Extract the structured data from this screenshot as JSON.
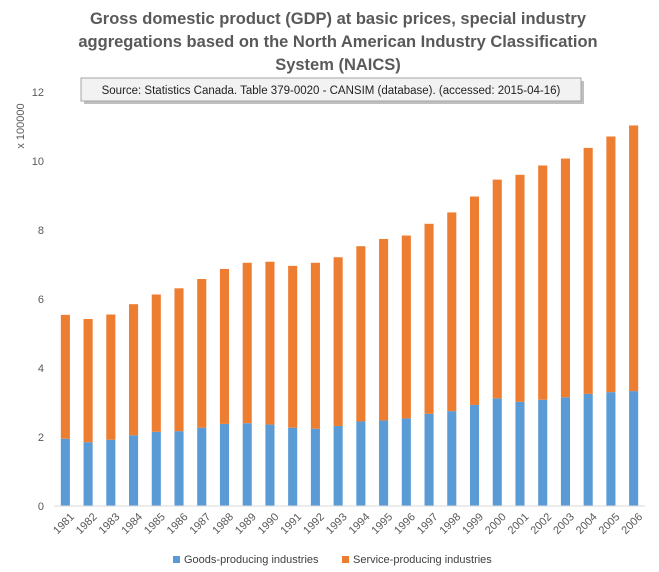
{
  "chart_data": {
    "type": "bar",
    "stacked": true,
    "title_lines": [
      "Gross domestic product (GDP) at basic prices, special industry",
      "aggregations based on the North American Industry Classification",
      "System (NAICS)"
    ],
    "source_note": "Source:  Statistics Canada. Table  379-0020 - CANSIM (database). (accessed: 2015-04-16)",
    "ylabel": "x 100000",
    "xlabel": "",
    "ylim": [
      0,
      12
    ],
    "yticks": [
      0,
      2,
      4,
      6,
      8,
      10,
      12
    ],
    "grid": false,
    "legend_position": "bottom",
    "categories": [
      "1981",
      "1982",
      "1983",
      "1984",
      "1985",
      "1986",
      "1987",
      "1988",
      "1989",
      "1990",
      "1991",
      "1992",
      "1993",
      "1994",
      "1995",
      "1996",
      "1997",
      "1998",
      "1999",
      "2000",
      "2001",
      "2002",
      "2003",
      "2004",
      "2005",
      "2006"
    ],
    "series": [
      {
        "name": "Goods-producing industries",
        "color": "#5b9bd5",
        "values": [
          1.95,
          1.85,
          1.92,
          2.05,
          2.15,
          2.17,
          2.27,
          2.38,
          2.4,
          2.36,
          2.27,
          2.24,
          2.32,
          2.45,
          2.48,
          2.54,
          2.67,
          2.75,
          2.93,
          3.12,
          3.02,
          3.08,
          3.15,
          3.25,
          3.3,
          3.33
        ]
      },
      {
        "name": "Service-producing industries",
        "color": "#ed7d31",
        "values": [
          3.59,
          3.57,
          3.63,
          3.8,
          3.98,
          4.14,
          4.31,
          4.49,
          4.65,
          4.72,
          4.69,
          4.81,
          4.89,
          5.08,
          5.26,
          5.3,
          5.51,
          5.76,
          6.04,
          6.34,
          6.58,
          6.79,
          6.92,
          7.13,
          7.41,
          7.7
        ]
      }
    ]
  }
}
